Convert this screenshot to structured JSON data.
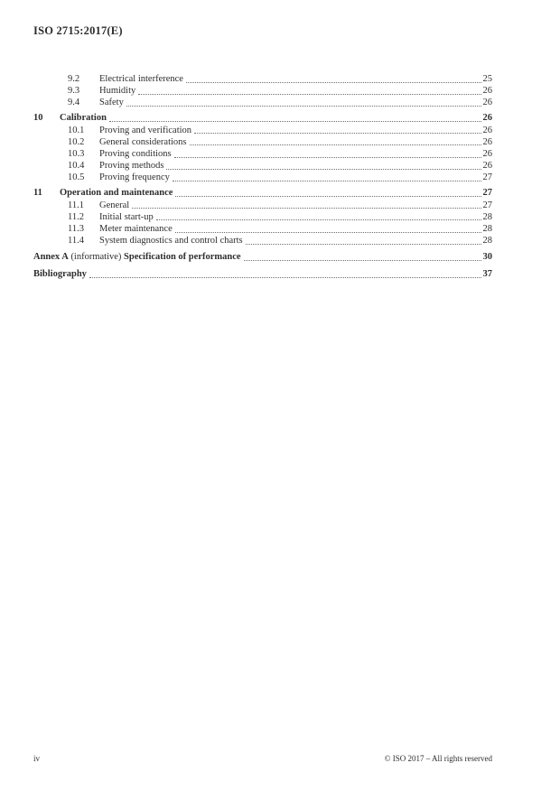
{
  "page": {
    "header": "ISO 2715:2017(E)",
    "footer_left": "iv",
    "footer_right": "© ISO 2017 – All rights reserved"
  },
  "toc": {
    "entries": [
      {
        "level": 2,
        "number": "9.2",
        "title": "Electrical interference",
        "page": "25",
        "bold": false
      },
      {
        "level": 2,
        "number": "9.3",
        "title": "Humidity",
        "page": "26",
        "bold": false
      },
      {
        "level": 2,
        "number": "9.4",
        "title": "Safety",
        "page": "26",
        "bold": false
      },
      {
        "level": 1,
        "number": "10",
        "title": "Calibration",
        "page": "26",
        "bold": true
      },
      {
        "level": 2,
        "number": "10.1",
        "title": "Proving and verification",
        "page": "26",
        "bold": false
      },
      {
        "level": 2,
        "number": "10.2",
        "title": "General considerations",
        "page": "26",
        "bold": false
      },
      {
        "level": 2,
        "number": "10.3",
        "title": "Proving conditions",
        "page": "26",
        "bold": false
      },
      {
        "level": 2,
        "number": "10.4",
        "title": "Proving methods",
        "page": "26",
        "bold": false
      },
      {
        "level": 2,
        "number": "10.5",
        "title": "Proving frequency",
        "page": "27",
        "bold": false
      },
      {
        "level": 1,
        "number": "11",
        "title": "Operation and maintenance",
        "page": "27",
        "bold": true
      },
      {
        "level": 2,
        "number": "11.1",
        "title": "General",
        "page": "27",
        "bold": false
      },
      {
        "level": 2,
        "number": "11.2",
        "title": "Initial start-up",
        "page": "28",
        "bold": false
      },
      {
        "level": 2,
        "number": "11.3",
        "title": "Meter maintenance",
        "page": "28",
        "bold": false
      },
      {
        "level": 2,
        "number": "11.4",
        "title": "System diagnostics and control charts",
        "page": "28",
        "bold": false
      },
      {
        "level": 0,
        "parts": [
          {
            "text": "Annex A",
            "bold": true
          },
          {
            "text": " (informative) ",
            "bold": false
          },
          {
            "text": "Specification of performance",
            "bold": true
          }
        ],
        "page": "30",
        "bold": true,
        "gap": "annex"
      },
      {
        "level": 0,
        "parts": [
          {
            "text": "Bibliography",
            "bold": true
          }
        ],
        "page": "37",
        "bold": true,
        "gap": "biblio"
      }
    ]
  },
  "colors": {
    "text": "#2e2e2e",
    "leader": "#6f6f6f"
  }
}
